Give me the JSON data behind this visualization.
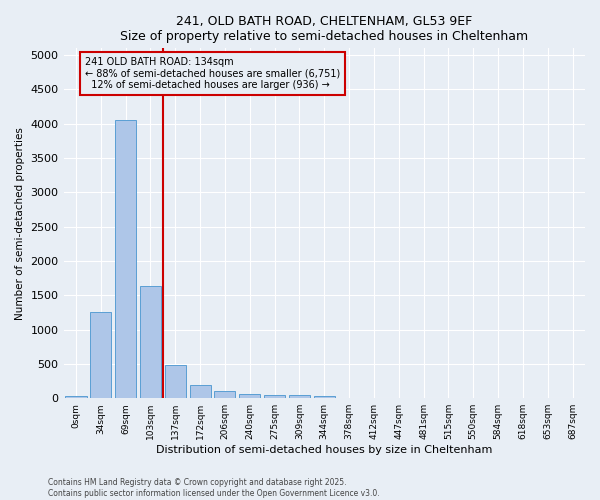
{
  "title": "241, OLD BATH ROAD, CHELTENHAM, GL53 9EF",
  "subtitle": "Size of property relative to semi-detached houses in Cheltenham",
  "xlabel": "Distribution of semi-detached houses by size in Cheltenham",
  "ylabel": "Number of semi-detached properties",
  "bar_labels": [
    "0sqm",
    "34sqm",
    "69sqm",
    "103sqm",
    "137sqm",
    "172sqm",
    "206sqm",
    "240sqm",
    "275sqm",
    "309sqm",
    "344sqm",
    "378sqm",
    "412sqm",
    "447sqm",
    "481sqm",
    "515sqm",
    "550sqm",
    "584sqm",
    "618sqm",
    "653sqm",
    "687sqm"
  ],
  "bar_values": [
    30,
    1250,
    4050,
    1630,
    480,
    190,
    110,
    60,
    50,
    40,
    30,
    0,
    0,
    0,
    0,
    0,
    0,
    0,
    0,
    0,
    0
  ],
  "bar_color": "#aec6e8",
  "bar_edge_color": "#5a9fd4",
  "vline_color": "#cc0000",
  "annotation_text_line1": "241 OLD BATH ROAD: 134sqm",
  "annotation_text_line2": "← 88% of semi-detached houses are smaller (6,751)",
  "annotation_text_line3": "  12% of semi-detached houses are larger (936) →",
  "ylim": [
    0,
    5100
  ],
  "yticks": [
    0,
    500,
    1000,
    1500,
    2000,
    2500,
    3000,
    3500,
    4000,
    4500,
    5000
  ],
  "bg_color": "#e8eef5",
  "grid_color": "#ffffff",
  "footer_line1": "Contains HM Land Registry data © Crown copyright and database right 2025.",
  "footer_line2": "Contains public sector information licensed under the Open Government Licence v3.0."
}
